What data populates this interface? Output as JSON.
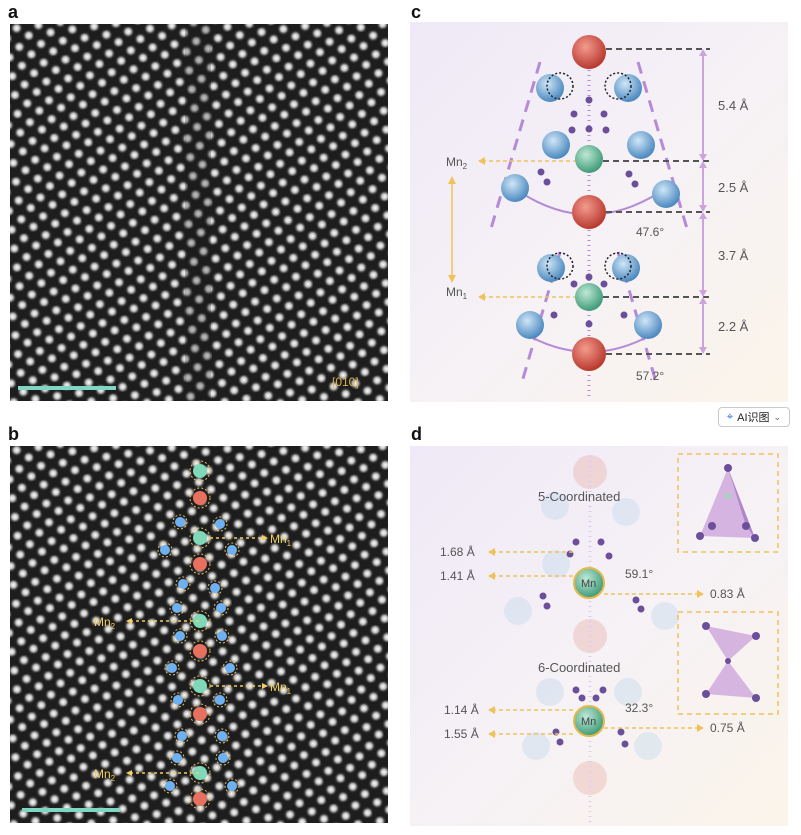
{
  "panels": {
    "a": "a",
    "b": "b",
    "c": "c",
    "d": "d"
  },
  "panel_a": {
    "zone_axis": "[010]",
    "colors": {
      "scale_bar": "#7fd6c3",
      "zone_axis": "#d9b24c"
    }
  },
  "panel_b": {
    "labels": {
      "mn1_top": "Mn",
      "mn1_top_sub": "1",
      "mn2_upper": "Mn",
      "mn2_upper_sub": "2",
      "mn1_lower": "Mn",
      "mn1_lower_sub": "1",
      "mn2_lower": "Mn",
      "mn2_lower_sub": "2"
    },
    "colors": {
      "red": "#e8705e",
      "teal": "#7fd9b9",
      "blue": "#6fb1f0",
      "label": "#f2cf62"
    }
  },
  "panel_c": {
    "distances": {
      "d1": "5.4 Å",
      "d2": "2.5 Å",
      "d3": "3.7 Å",
      "d4": "2.2 Å"
    },
    "angles": {
      "upper": "47.6°",
      "lower": "57.2°"
    },
    "labels": {
      "mn2": "Mn",
      "mn2_sub": "2",
      "mn1": "Mn",
      "mn1_sub": "1"
    },
    "colors": {
      "red_atom": "#d9574a",
      "blue_atom": "#6ea8d6",
      "green_atom": "#6dbf9e",
      "oxygen": "#6b4f9a",
      "guide": "#b58ad6",
      "arrow": "#f0c35a"
    }
  },
  "panel_d": {
    "titles": {
      "top": "5-Coordinated",
      "bottom": "6-Coordinated"
    },
    "atom_label_top": "Mn",
    "atom_label_bottom": "Mn",
    "distances_top": {
      "left_upper": "1.68 Å",
      "left_lower": "1.41 Å",
      "right": "0.83 Å"
    },
    "distances_bottom": {
      "left_upper": "1.14 Å",
      "left_lower": "1.55 Å",
      "right": "0.75 Å"
    },
    "angles": {
      "top": "59.1°",
      "bottom": "32.3°"
    },
    "colors": {
      "polyhedron": "#c79ad8",
      "frame": "#f0c35a"
    }
  },
  "toolbar": {
    "ai_label": "AI识图",
    "icon": "sparkle-scan-icon",
    "chevron": "chevron-down-icon"
  }
}
